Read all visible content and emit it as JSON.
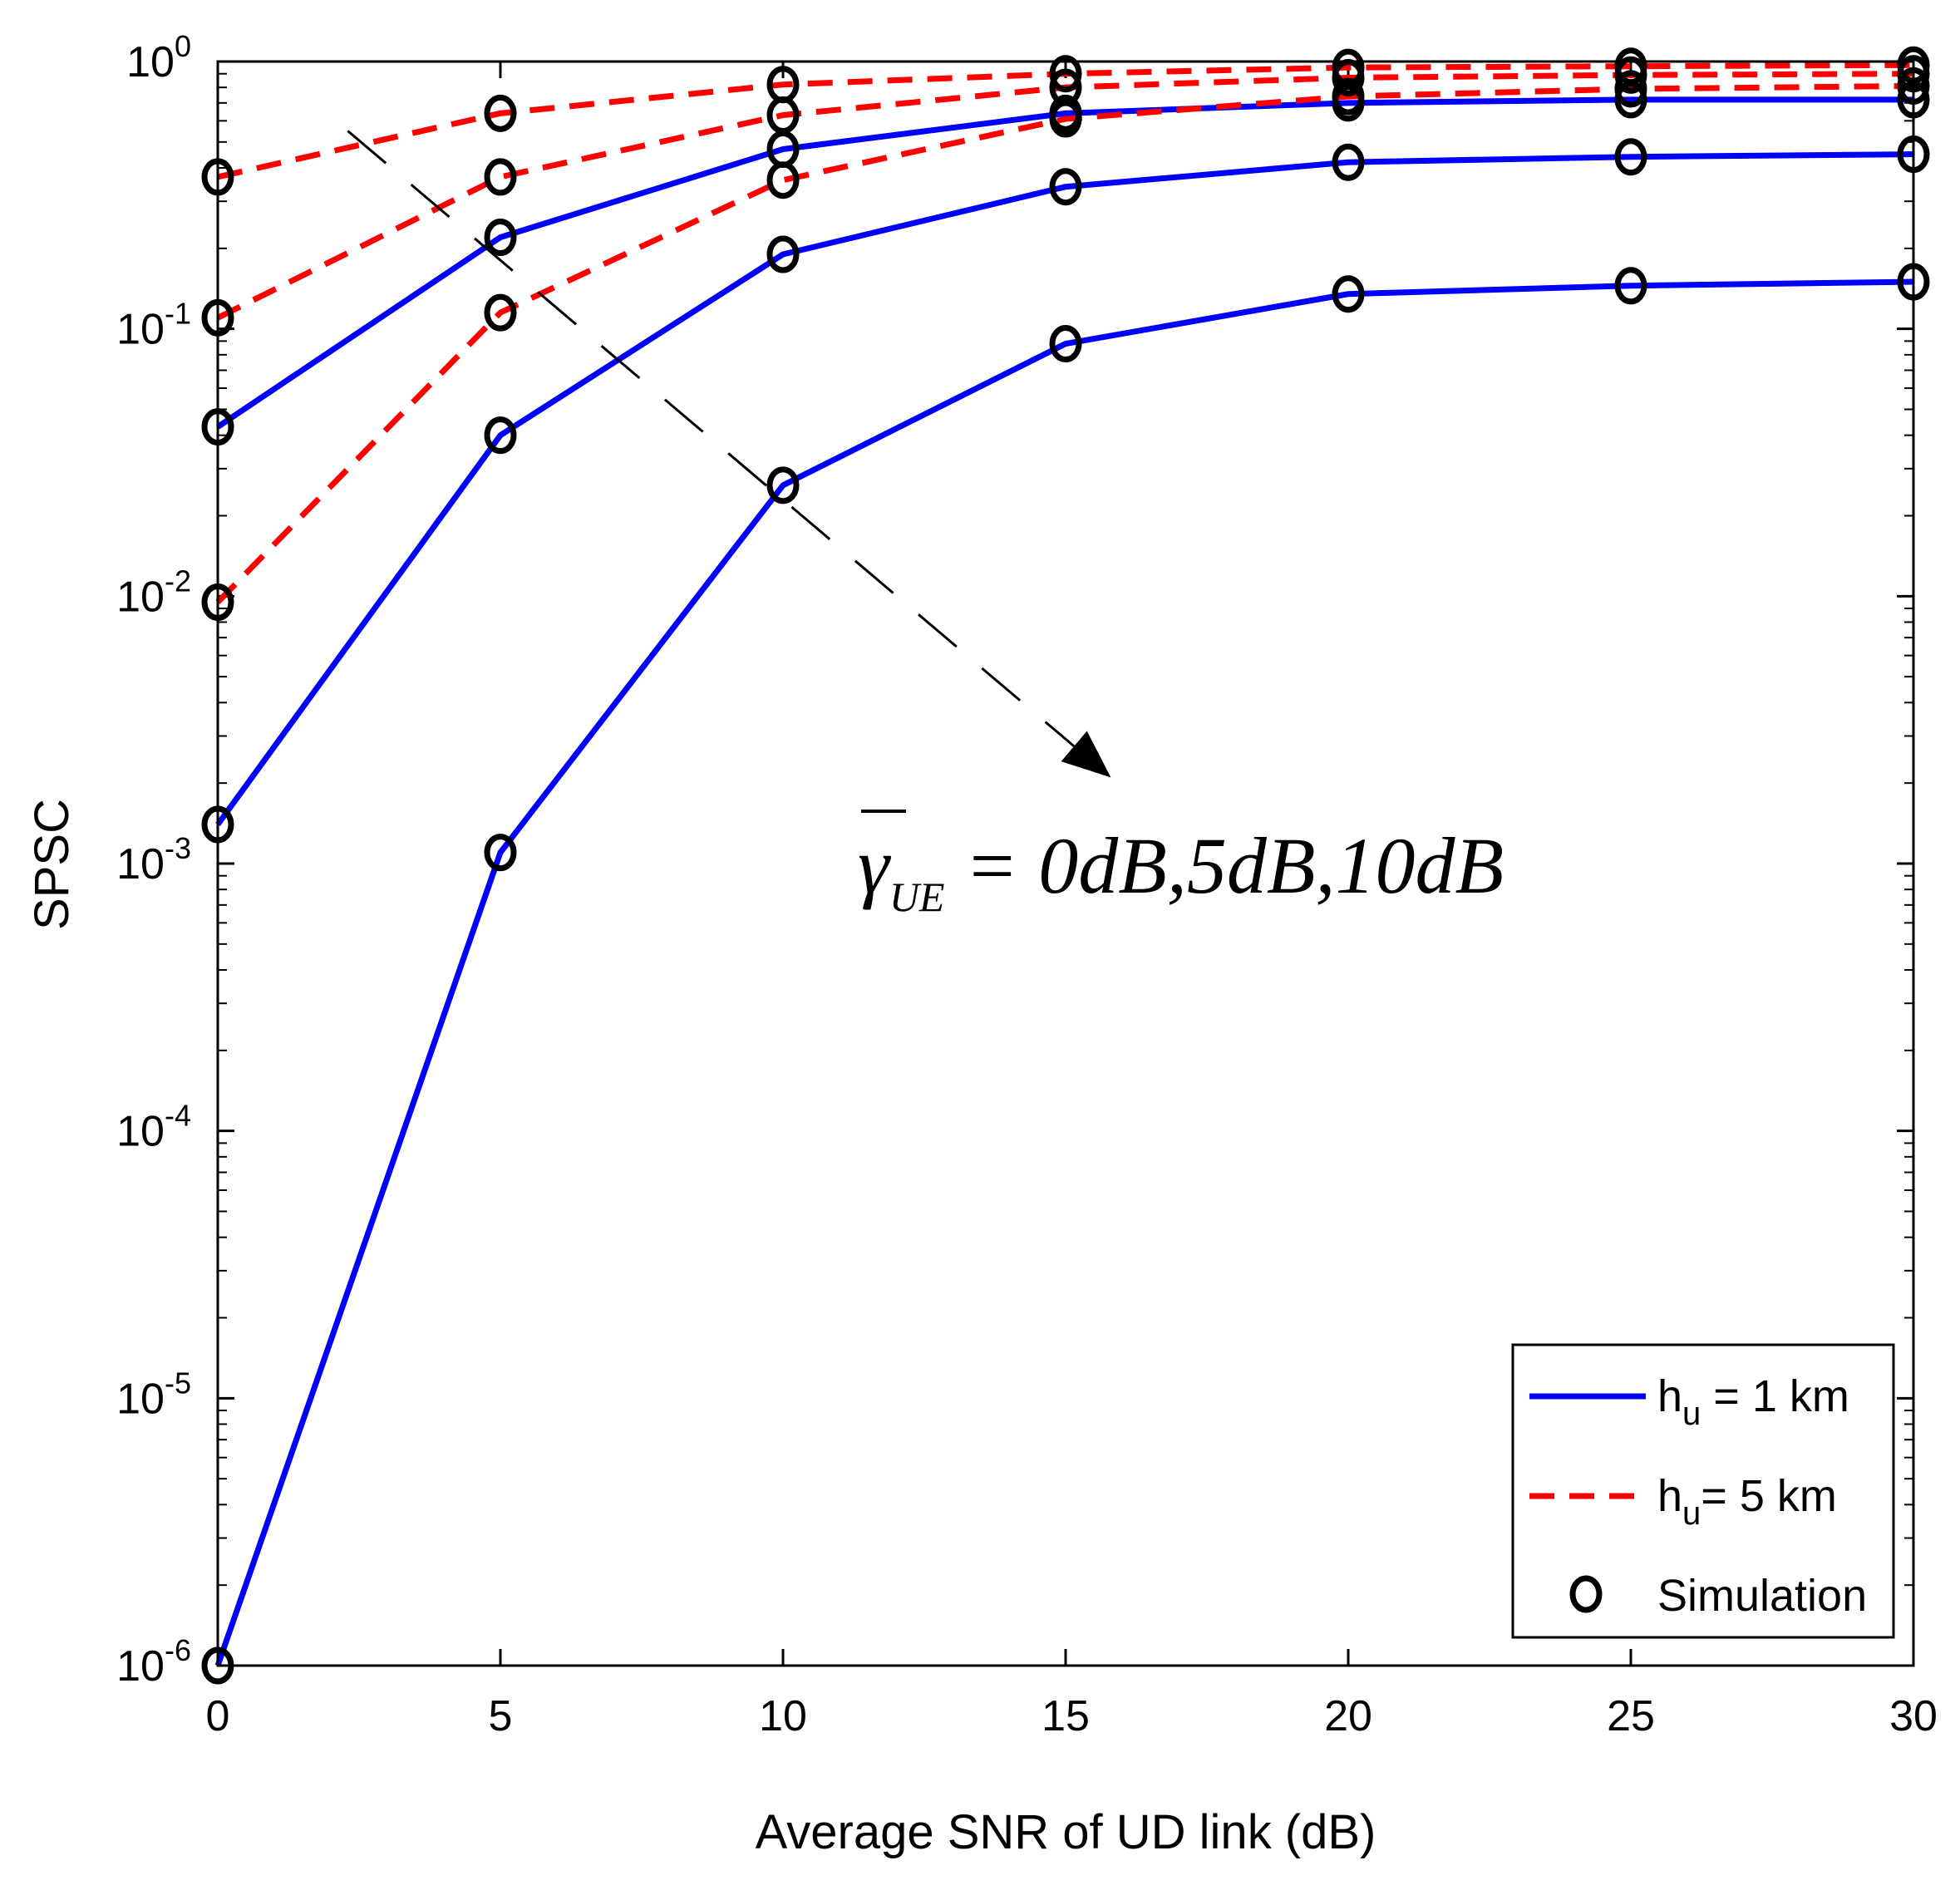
{
  "chart_data": {
    "type": "line",
    "title": "",
    "xlabel": "Average SNR of UD link (dB)",
    "ylabel": "SPSC",
    "xlim": [
      0,
      30
    ],
    "ylim": [
      1e-06,
      1
    ],
    "yscale": "log",
    "x": [
      0,
      5,
      10,
      15,
      20,
      25,
      30
    ],
    "x_ticks": [
      "0",
      "5",
      "10",
      "15",
      "20",
      "25",
      "30"
    ],
    "y_ticks": [
      {
        "base": "10",
        "exp": "0",
        "value": 1
      },
      {
        "base": "10",
        "exp": "-1",
        "value": 0.1
      },
      {
        "base": "10",
        "exp": "-2",
        "value": 0.01
      },
      {
        "base": "10",
        "exp": "-3",
        "value": 0.001
      },
      {
        "base": "10",
        "exp": "-4",
        "value": 0.0001
      },
      {
        "base": "10",
        "exp": "-5",
        "value": 1e-05
      },
      {
        "base": "10",
        "exp": "-6",
        "value": 1e-06
      }
    ],
    "grid": false,
    "legend_position": "bottom-right",
    "legend": [
      {
        "label_main": "h",
        "label_sub": "u",
        "label_rest": " = 1 km",
        "style": "solid",
        "color": "#0000ff"
      },
      {
        "label_main": "h",
        "label_sub": "u",
        "label_rest": "= 5 km",
        "style": "dashed",
        "color": "#ff0000"
      },
      {
        "label_main": "Simulation",
        "label_sub": "",
        "label_rest": "",
        "style": "marker",
        "color": "#000000"
      }
    ],
    "series": [
      {
        "group": "hu = 1 km",
        "gamma_ue": "0dB",
        "color": "#0000ff",
        "style": "solid",
        "values": [
          0.043,
          0.22,
          0.47,
          0.64,
          0.7,
          0.72,
          0.72
        ]
      },
      {
        "group": "hu = 1 km",
        "gamma_ue": "5dB",
        "color": "#0000ff",
        "style": "solid",
        "values": [
          0.0014,
          0.04,
          0.19,
          0.34,
          0.42,
          0.44,
          0.45
        ]
      },
      {
        "group": "hu = 1 km",
        "gamma_ue": "10dB",
        "color": "#0000ff",
        "style": "solid",
        "values": [
          1e-06,
          0.0011,
          0.026,
          0.088,
          0.135,
          0.145,
          0.15
        ]
      },
      {
        "group": "hu = 5 km",
        "gamma_ue": "0dB",
        "color": "#ff0000",
        "style": "dashed",
        "values": [
          0.37,
          0.64,
          0.82,
          0.9,
          0.95,
          0.96,
          0.97
        ]
      },
      {
        "group": "hu = 5 km",
        "gamma_ue": "5dB",
        "color": "#ff0000",
        "style": "dashed",
        "values": [
          0.11,
          0.37,
          0.63,
          0.8,
          0.87,
          0.89,
          0.9
        ]
      },
      {
        "group": "hu = 5 km",
        "gamma_ue": "10dB",
        "color": "#ff0000",
        "style": "dashed",
        "values": [
          0.0095,
          0.115,
          0.36,
          0.61,
          0.74,
          0.79,
          0.81
        ]
      }
    ],
    "annotation": {
      "symbol": "γ",
      "subscript": "UE",
      "text": " = 0dB,5dB,10dB",
      "arrow_from": {
        "x": 2.3,
        "y": 0.55
      },
      "arrow_to": {
        "x": 15.8,
        "y": 0.0021
      }
    }
  }
}
